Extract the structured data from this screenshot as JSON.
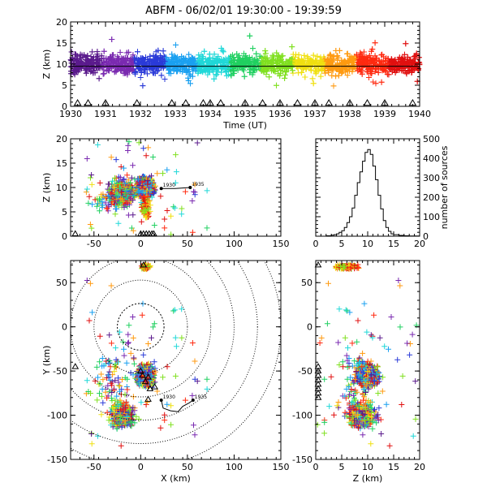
{
  "chart_data": {
    "type": "scatter",
    "title": "ABFM - 06/02/01 19:30:00 - 19:39:59",
    "colors": {
      "spectrum": [
        "#5a1a8c",
        "#7a2ab0",
        "#2a3ad8",
        "#1aa0f0",
        "#20d8d8",
        "#20d060",
        "#80e020",
        "#f0e010",
        "#ff9a10",
        "#ff2a10",
        "#e01010"
      ],
      "axes": "#000000",
      "background": "#ffffff"
    },
    "panels": [
      {
        "id": "time_height",
        "type": "scatter",
        "xlabel": "Time (UT)",
        "ylabel": "Z (km)",
        "xlim": [
          1930,
          1940
        ],
        "ylim": [
          0,
          20
        ],
        "xticks": [
          "1930",
          "1931",
          "1932",
          "1933",
          "1934",
          "1935",
          "1936",
          "1937",
          "1938",
          "1939",
          "1940"
        ],
        "yticks": [
          "0",
          "5",
          "10",
          "15",
          "20"
        ],
        "reference_line_z": 9.5,
        "station_times": [
          1930.2,
          1930.5,
          1931.0,
          1931.9,
          1932.9,
          1933.3,
          1933.8,
          1934.0,
          1934.3,
          1935.0,
          1935.5,
          1936.0,
          1936.5,
          1937.0,
          1937.4,
          1938.0,
          1938.5,
          1939.0,
          1939.8
        ]
      },
      {
        "id": "x_height",
        "type": "scatter",
        "xlabel": "",
        "ylabel": "Z (km)",
        "xlim": [
          -75,
          150
        ],
        "ylim": [
          0,
          20
        ],
        "xticks": [
          "-50",
          "0",
          "50",
          "100",
          "150"
        ],
        "yticks": [
          "0",
          "5",
          "10",
          "15",
          "20"
        ],
        "track_labels": [
          "1930",
          "1935"
        ],
        "track": [
          [
            22,
            9.8
          ],
          [
            37,
            9.8
          ],
          [
            53,
            10.0
          ]
        ]
      },
      {
        "id": "altitude_histogram",
        "type": "line",
        "xlabel": "",
        "ylabel": "number of sources",
        "xlim": [
          0,
          20
        ],
        "ylim": [
          0,
          500
        ],
        "xticks": [
          "0",
          "5",
          "10",
          "15",
          "20"
        ],
        "yticks": [
          "0",
          "100",
          "200",
          "300",
          "400",
          "500"
        ],
        "x": [
          0,
          1,
          2,
          3,
          3.5,
          4,
          4.5,
          5,
          5.5,
          6,
          6.5,
          7,
          7.5,
          8,
          8.5,
          9,
          9.5,
          10,
          10.5,
          11,
          11.5,
          12,
          12.5,
          13,
          13.5,
          14,
          14.5,
          15,
          16,
          17,
          18,
          20
        ],
        "values": [
          0,
          0,
          2,
          5,
          8,
          12,
          20,
          28,
          45,
          70,
          100,
          145,
          210,
          275,
          330,
          385,
          430,
          445,
          420,
          360,
          290,
          210,
          140,
          80,
          45,
          25,
          12,
          8,
          4,
          2,
          1,
          0
        ]
      },
      {
        "id": "plan_view",
        "type": "scatter",
        "xlabel": "X (km)",
        "ylabel": "Y (km)",
        "xlim": [
          -75,
          150
        ],
        "ylim": [
          -150,
          75
        ],
        "xticks": [
          "-50",
          "0",
          "50",
          "100",
          "150"
        ],
        "yticks": [
          "-150",
          "-100",
          "-50",
          "0",
          "50"
        ],
        "range_rings_km": [
          25,
          50,
          75,
          100,
          125,
          150
        ],
        "track_labels": [
          "1930",
          "1935"
        ],
        "track": [
          [
            22,
            -83
          ],
          [
            24,
            -92
          ],
          [
            32,
            -95
          ],
          [
            40,
            -96
          ],
          [
            45,
            -90
          ],
          [
            52,
            -86
          ],
          [
            56,
            -83
          ]
        ]
      },
      {
        "id": "z_y_view",
        "type": "scatter",
        "xlabel": "Z (km)",
        "ylabel": "",
        "xlim": [
          0,
          20
        ],
        "ylim": [
          -150,
          75
        ],
        "xticks": [
          "0",
          "5",
          "10",
          "15",
          "20"
        ],
        "yticks": [
          "-150",
          "-100",
          "-50",
          "0",
          "50"
        ]
      }
    ]
  }
}
